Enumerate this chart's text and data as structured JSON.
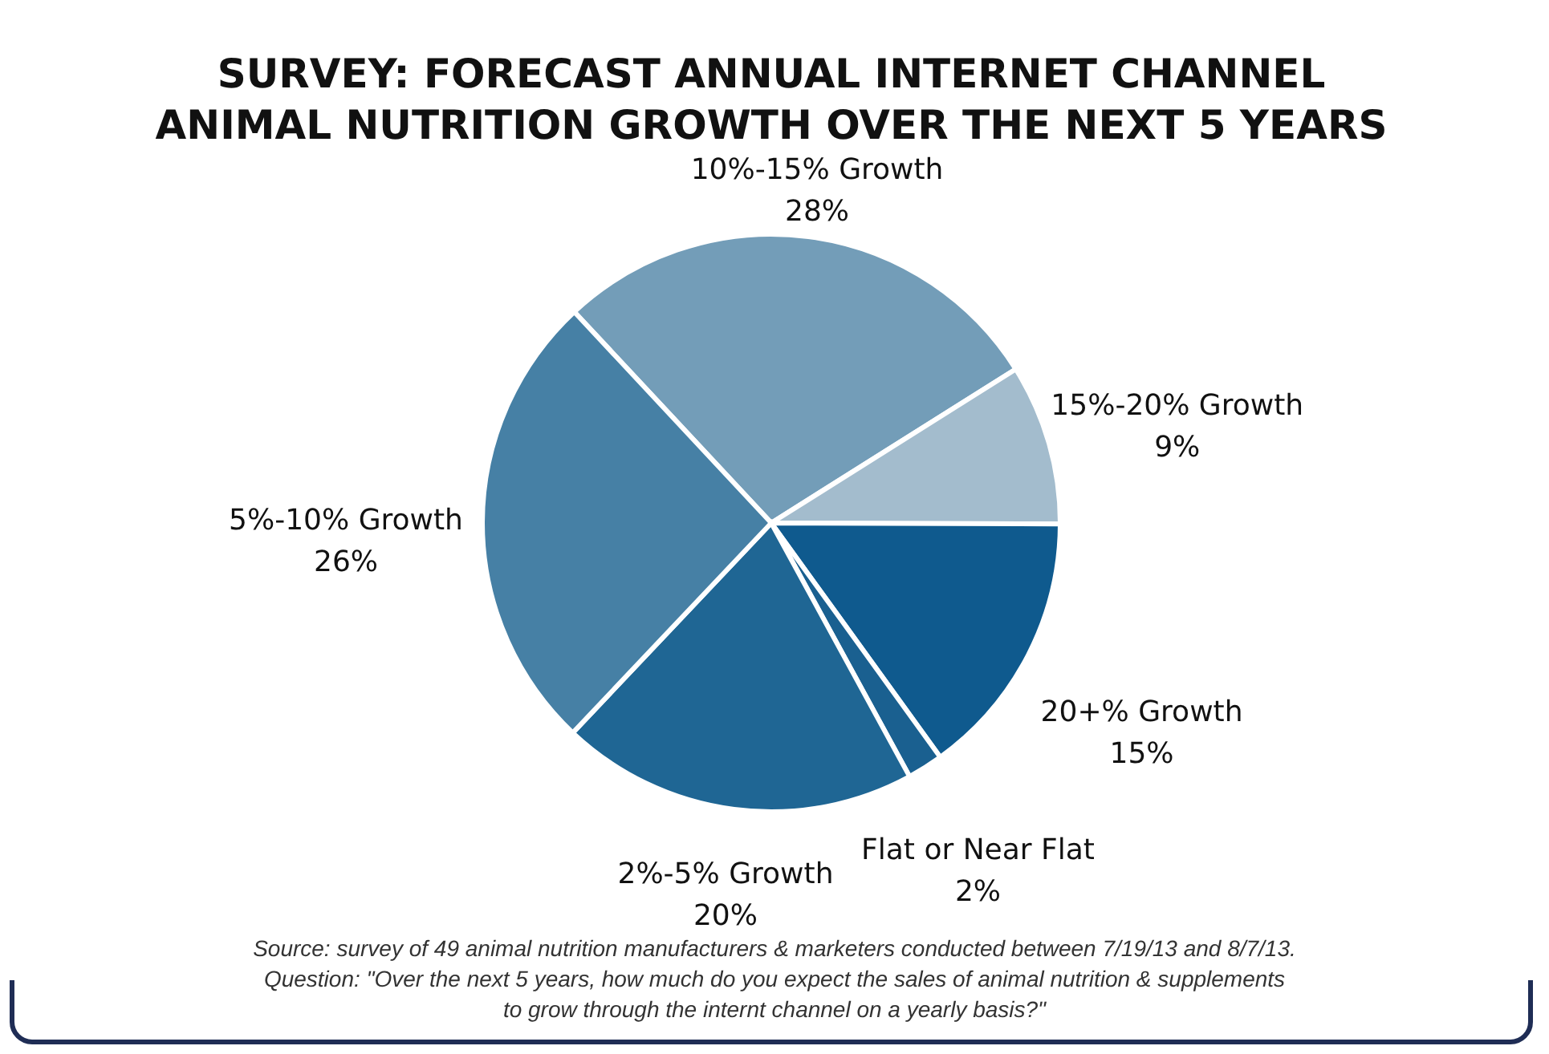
{
  "chart_data": {
    "type": "pie",
    "title": "SURVEY: FORECAST ANNUAL INTERNET CHANNEL ANIMAL NUTRITION GROWTH OVER THE NEXT 5 YEARS",
    "categories": [
      "10%-15% Growth",
      "15%-20% Growth",
      "20+% Growth",
      "Flat or Near Flat",
      "2%-5% Growth",
      "5%-10% Growth"
    ],
    "values": [
      28,
      9,
      15,
      2,
      20,
      26
    ],
    "value_labels": [
      "28%",
      "9%",
      "15%",
      "2%",
      "20%",
      "26%"
    ],
    "colors": [
      "#739db8",
      "#a3bccd",
      "#0f5a8e",
      "#1a6090",
      "#1f6694",
      "#4680a5"
    ],
    "annotations": [
      "Source: survey of 49 animal nutrition manufacturers & marketers conducted between 7/19/13 and 8/7/13.",
      "Question: \"Over the next 5 years, how much do you expect the sales of animal nutrition & supplements to grow through the internt channel on a yearly basis?\""
    ]
  }
}
